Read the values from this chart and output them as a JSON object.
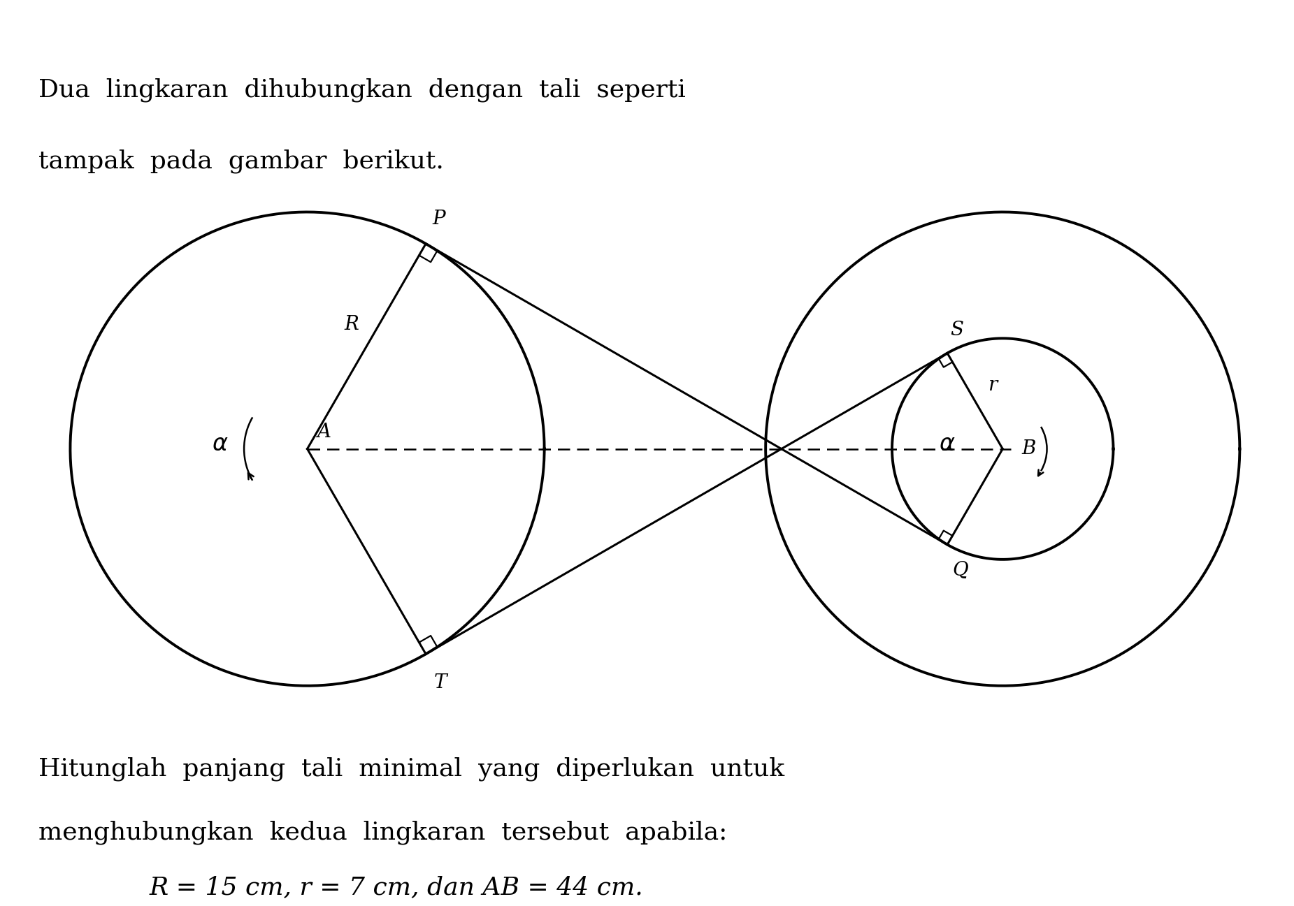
{
  "title_line1": "Dua  lingkaran  dihubungkan  dengan  tali  seperti",
  "title_line2": "tampak  pada  gambar  berikut.",
  "bottom_line1": "Hitunglah  panjang  tali  minimal  yang  diperlukan  untuk",
  "bottom_line2": "menghubungkan  kedua  lingkaran  tersebut  apabila:",
  "bottom_line3": "R = 15 cm, r = 7 cm, dan AB = 44 cm.",
  "bg_color": "#ffffff",
  "line_color": "#000000",
  "R_large": 15,
  "r_small": 7,
  "AB_dist": 44,
  "R_outer_B": 15,
  "font_size_title": 26,
  "font_size_label": 20,
  "font_size_bottom": 26,
  "font_size_bottom3": 26
}
